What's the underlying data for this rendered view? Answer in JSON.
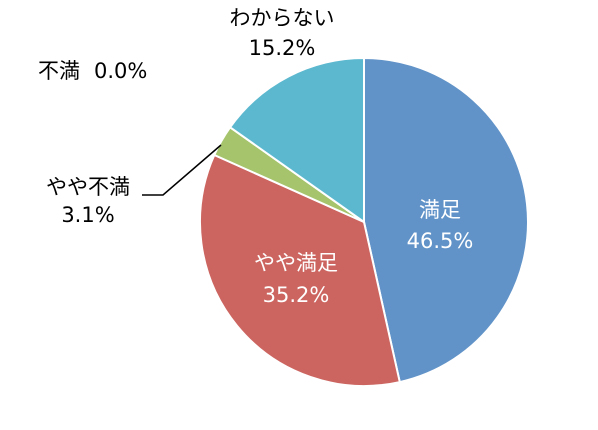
{
  "chart_data": {
    "type": "pie",
    "start_angle_deg": 0,
    "direction": "clockwise",
    "slices": [
      {
        "label": "満足",
        "value": 46.5,
        "value_text": "46.5%",
        "color": "#6193c8",
        "label_position": "inside"
      },
      {
        "label": "やや満足",
        "value": 35.2,
        "value_text": "35.2%",
        "color": "#cc6560",
        "label_position": "inside"
      },
      {
        "label": "不満",
        "value": 0.0,
        "value_text": "0.0%",
        "color": "#8064a2",
        "label_position": "outside"
      },
      {
        "label": "やや不満",
        "value": 3.1,
        "value_text": "3.1%",
        "color": "#a5c46b",
        "label_position": "outside-leader"
      },
      {
        "label": "わからない",
        "value": 15.2,
        "value_text": "15.2%",
        "color": "#5bb8cf",
        "label_position": "outside"
      }
    ]
  }
}
